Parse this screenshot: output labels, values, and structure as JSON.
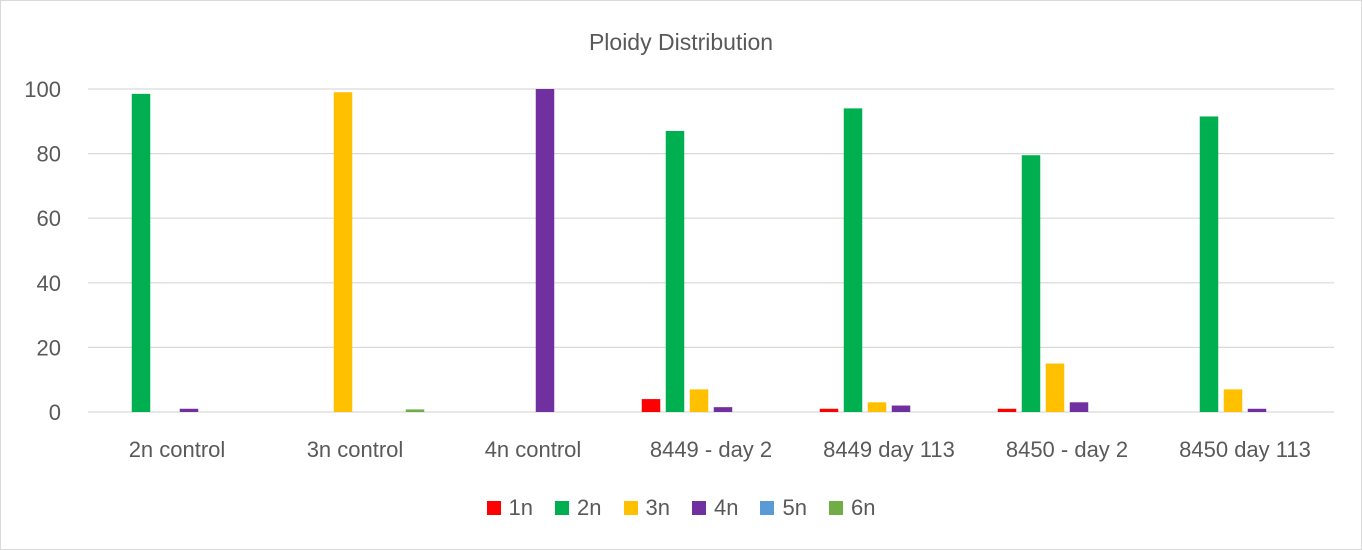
{
  "chart_data": {
    "type": "bar",
    "title": "Ploidy Distribution",
    "xlabel": "",
    "ylabel": "",
    "ylim": [
      0,
      100
    ],
    "yticks": [
      0,
      20,
      40,
      60,
      80,
      100
    ],
    "grid": true,
    "legend_position": "bottom",
    "categories": [
      "2n control",
      "3n control",
      "4n control",
      "8449 - day 2",
      "8449 day 113",
      "8450 - day 2",
      "8450 day 113"
    ],
    "series": [
      {
        "name": "1n",
        "color": "#ff0000",
        "values": [
          0,
          0,
          0,
          4,
          1,
          1,
          0
        ]
      },
      {
        "name": "2n",
        "color": "#00b050",
        "values": [
          98.5,
          0,
          0,
          87,
          94,
          79.5,
          91.5
        ]
      },
      {
        "name": "3n",
        "color": "#ffc000",
        "values": [
          0,
          99,
          0,
          7,
          3,
          15,
          7
        ]
      },
      {
        "name": "4n",
        "color": "#7030a0",
        "values": [
          1,
          0,
          100,
          1.5,
          2,
          3,
          1
        ]
      },
      {
        "name": "5n",
        "color": "#5b9bd5",
        "values": [
          0,
          0,
          0,
          0,
          0,
          0,
          0
        ]
      },
      {
        "name": "6n",
        "color": "#70ad47",
        "values": [
          0,
          0.8,
          0,
          0,
          0,
          0,
          0
        ]
      }
    ]
  }
}
